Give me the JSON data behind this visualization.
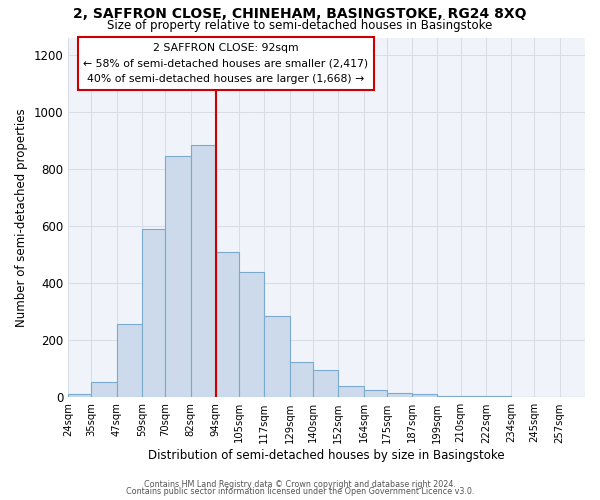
{
  "title": "2, SAFFRON CLOSE, CHINEHAM, BASINGSTOKE, RG24 8XQ",
  "subtitle": "Size of property relative to semi-detached houses in Basingstoke",
  "xlabel": "Distribution of semi-detached houses by size in Basingstoke",
  "ylabel": "Number of semi-detached properties",
  "bin_labels": [
    "24sqm",
    "35sqm",
    "47sqm",
    "59sqm",
    "70sqm",
    "82sqm",
    "94sqm",
    "105sqm",
    "117sqm",
    "129sqm",
    "140sqm",
    "152sqm",
    "164sqm",
    "175sqm",
    "187sqm",
    "199sqm",
    "210sqm",
    "222sqm",
    "234sqm",
    "245sqm",
    "257sqm"
  ],
  "bin_edges": [
    24,
    35,
    47,
    59,
    70,
    82,
    94,
    105,
    117,
    129,
    140,
    152,
    164,
    175,
    187,
    199,
    210,
    222,
    234,
    245,
    257
  ],
  "bar_heights": [
    10,
    55,
    255,
    590,
    845,
    885,
    510,
    440,
    285,
    125,
    97,
    40,
    25,
    15,
    10,
    3,
    3,
    3,
    2,
    2,
    2
  ],
  "bar_color": "#ccdaec",
  "bar_edge_color": "#7aaace",
  "vline_x": 94,
  "vline_color": "#cc0000",
  "annotation_title": "2 SAFFRON CLOSE: 92sqm",
  "annotation_line1": "← 58% of semi-detached houses are smaller (2,417)",
  "annotation_line2": "40% of semi-detached houses are larger (1,668) →",
  "annotation_box_edge": "#cc0000",
  "ylim": [
    0,
    1260
  ],
  "yticks": [
    0,
    200,
    400,
    600,
    800,
    1000,
    1200
  ],
  "footer1": "Contains HM Land Registry data © Crown copyright and database right 2024.",
  "footer2": "Contains public sector information licensed under the Open Government Licence v3.0.",
  "background_color": "#ffffff",
  "plot_bg_color": "#f0f4fa",
  "grid_color": "#d8dde8"
}
